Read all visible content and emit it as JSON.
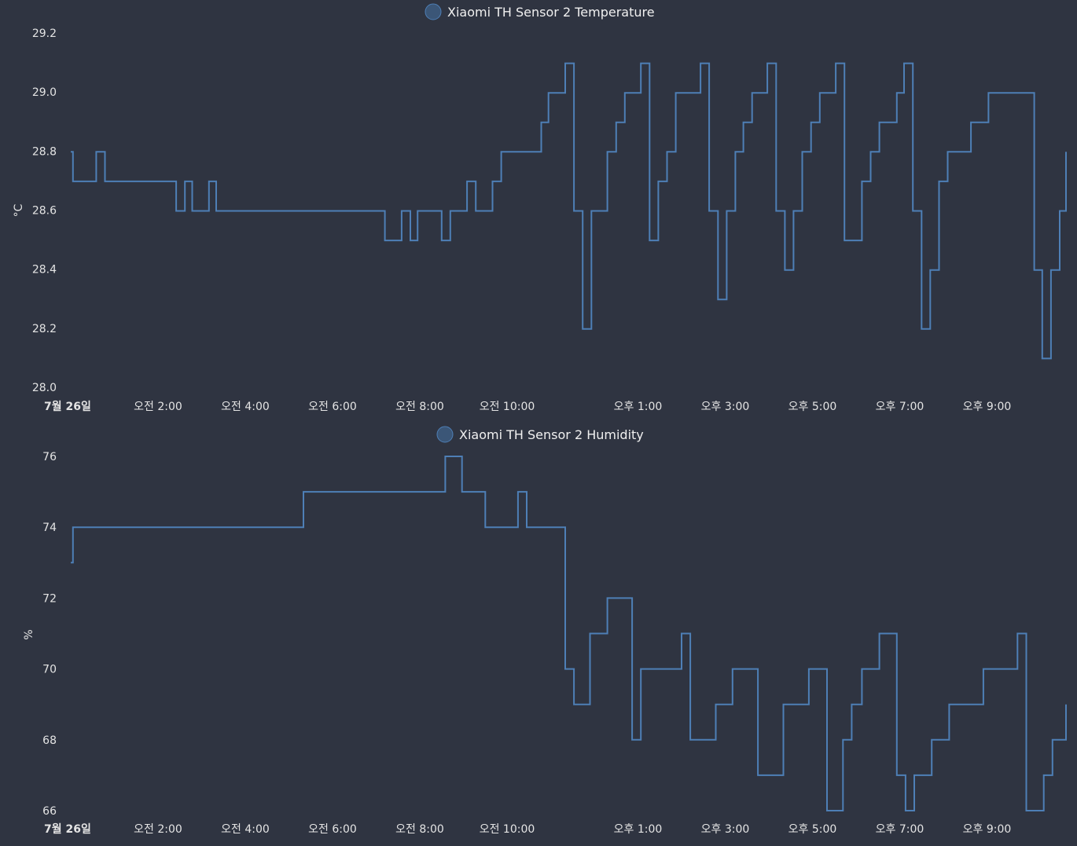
{
  "colors": {
    "background": "#2f3441",
    "series": "#4e7fb6",
    "legend_dot": "#3b5677"
  },
  "x_axis": {
    "range_hours": [
      0,
      24
    ],
    "ticks": [
      {
        "h": 0,
        "label": "7월 26일",
        "bold": true
      },
      {
        "h": 2,
        "label": "오전 2:00"
      },
      {
        "h": 4,
        "label": "오전 4:00"
      },
      {
        "h": 6,
        "label": "오전 6:00"
      },
      {
        "h": 8,
        "label": "오전 8:00"
      },
      {
        "h": 10,
        "label": "오전 10:00"
      },
      {
        "h": 13,
        "label": "오후 1:00"
      },
      {
        "h": 15,
        "label": "오후 3:00"
      },
      {
        "h": 17,
        "label": "오후 5:00"
      },
      {
        "h": 19,
        "label": "오후 7:00"
      },
      {
        "h": 21,
        "label": "오후 9:00"
      }
    ]
  },
  "chart_data": [
    {
      "type": "line",
      "step": true,
      "series": [
        {
          "name": "Xiaomi TH Sensor 2 Temperature"
        }
      ],
      "ylabel": "°C",
      "ylim": [
        28.0,
        29.2
      ],
      "yticks": [
        "28.0",
        "28.2",
        "28.4",
        "28.6",
        "28.8",
        "29.0",
        "29.2"
      ],
      "points": [
        [
          "00:00",
          28.8
        ],
        [
          "00:03",
          28.7
        ],
        [
          "00:35",
          28.8
        ],
        [
          "00:47",
          28.7
        ],
        [
          "02:25",
          28.6
        ],
        [
          "02:37",
          28.7
        ],
        [
          "02:47",
          28.6
        ],
        [
          "03:10",
          28.7
        ],
        [
          "03:20",
          28.6
        ],
        [
          "07:12",
          28.5
        ],
        [
          "07:35",
          28.6
        ],
        [
          "07:47",
          28.5
        ],
        [
          "07:57",
          28.6
        ],
        [
          "08:30",
          28.5
        ],
        [
          "08:42",
          28.6
        ],
        [
          "09:05",
          28.7
        ],
        [
          "09:17",
          28.6
        ],
        [
          "09:40",
          28.7
        ],
        [
          "09:52",
          28.8
        ],
        [
          "10:47",
          28.9
        ],
        [
          "10:57",
          29.0
        ],
        [
          "11:20",
          29.1
        ],
        [
          "11:32",
          28.6
        ],
        [
          "11:44",
          28.2
        ],
        [
          "11:56",
          28.6
        ],
        [
          "12:18",
          28.8
        ],
        [
          "12:30",
          28.9
        ],
        [
          "12:42",
          29.0
        ],
        [
          "13:04",
          29.1
        ],
        [
          "13:16",
          28.5
        ],
        [
          "13:28",
          28.7
        ],
        [
          "13:40",
          28.8
        ],
        [
          "13:52",
          29.0
        ],
        [
          "14:26",
          29.1
        ],
        [
          "14:38",
          28.6
        ],
        [
          "14:50",
          28.3
        ],
        [
          "15:02",
          28.6
        ],
        [
          "15:14",
          28.8
        ],
        [
          "15:25",
          28.9
        ],
        [
          "15:37",
          29.0
        ],
        [
          "15:58",
          29.1
        ],
        [
          "16:10",
          28.6
        ],
        [
          "16:22",
          28.4
        ],
        [
          "16:34",
          28.6
        ],
        [
          "16:46",
          28.8
        ],
        [
          "16:58",
          28.9
        ],
        [
          "17:10",
          29.0
        ],
        [
          "17:32",
          29.1
        ],
        [
          "17:44",
          28.5
        ],
        [
          "18:08",
          28.7
        ],
        [
          "18:20",
          28.8
        ],
        [
          "18:32",
          28.9
        ],
        [
          "18:56",
          29.0
        ],
        [
          "19:06",
          29.1
        ],
        [
          "19:18",
          28.6
        ],
        [
          "19:30",
          28.2
        ],
        [
          "19:42",
          28.4
        ],
        [
          "19:54",
          28.7
        ],
        [
          "20:06",
          28.8
        ],
        [
          "20:38",
          28.9
        ],
        [
          "21:02",
          29.0
        ],
        [
          "22:05",
          28.4
        ],
        [
          "22:16",
          28.1
        ],
        [
          "22:28",
          28.4
        ],
        [
          "22:40",
          28.6
        ],
        [
          "22:52",
          28.7
        ],
        [
          "23:28",
          28.8
        ],
        [
          "23:55",
          28.8
        ]
      ]
    },
    {
      "type": "line",
      "step": true,
      "series": [
        {
          "name": "Xiaomi TH Sensor 2 Humidity"
        }
      ],
      "ylabel": "%",
      "ylim": [
        66,
        76
      ],
      "yticks": [
        "66",
        "68",
        "70",
        "72",
        "74",
        "76"
      ],
      "points": [
        [
          "00:00",
          73
        ],
        [
          "00:03",
          74
        ],
        [
          "05:20",
          75
        ],
        [
          "08:35",
          76
        ],
        [
          "08:58",
          75
        ],
        [
          "09:30",
          74
        ],
        [
          "10:15",
          75
        ],
        [
          "10:27",
          74
        ],
        [
          "11:20",
          70
        ],
        [
          "11:32",
          69
        ],
        [
          "11:54",
          71
        ],
        [
          "12:18",
          72
        ],
        [
          "12:52",
          68
        ],
        [
          "13:04",
          70
        ],
        [
          "14:00",
          71
        ],
        [
          "14:12",
          68
        ],
        [
          "14:47",
          69
        ],
        [
          "15:10",
          70
        ],
        [
          "15:45",
          67
        ],
        [
          "16:20",
          69
        ],
        [
          "16:55",
          70
        ],
        [
          "17:20",
          66
        ],
        [
          "17:42",
          68
        ],
        [
          "17:54",
          69
        ],
        [
          "18:08",
          70
        ],
        [
          "18:32",
          71
        ],
        [
          "18:56",
          67
        ],
        [
          "19:08",
          66
        ],
        [
          "19:20",
          67
        ],
        [
          "19:44",
          68
        ],
        [
          "20:08",
          69
        ],
        [
          "20:55",
          70
        ],
        [
          "21:42",
          71
        ],
        [
          "21:54",
          66
        ],
        [
          "22:18",
          67
        ],
        [
          "22:30",
          68
        ],
        [
          "23:04",
          69
        ],
        [
          "23:55",
          69
        ]
      ]
    }
  ]
}
